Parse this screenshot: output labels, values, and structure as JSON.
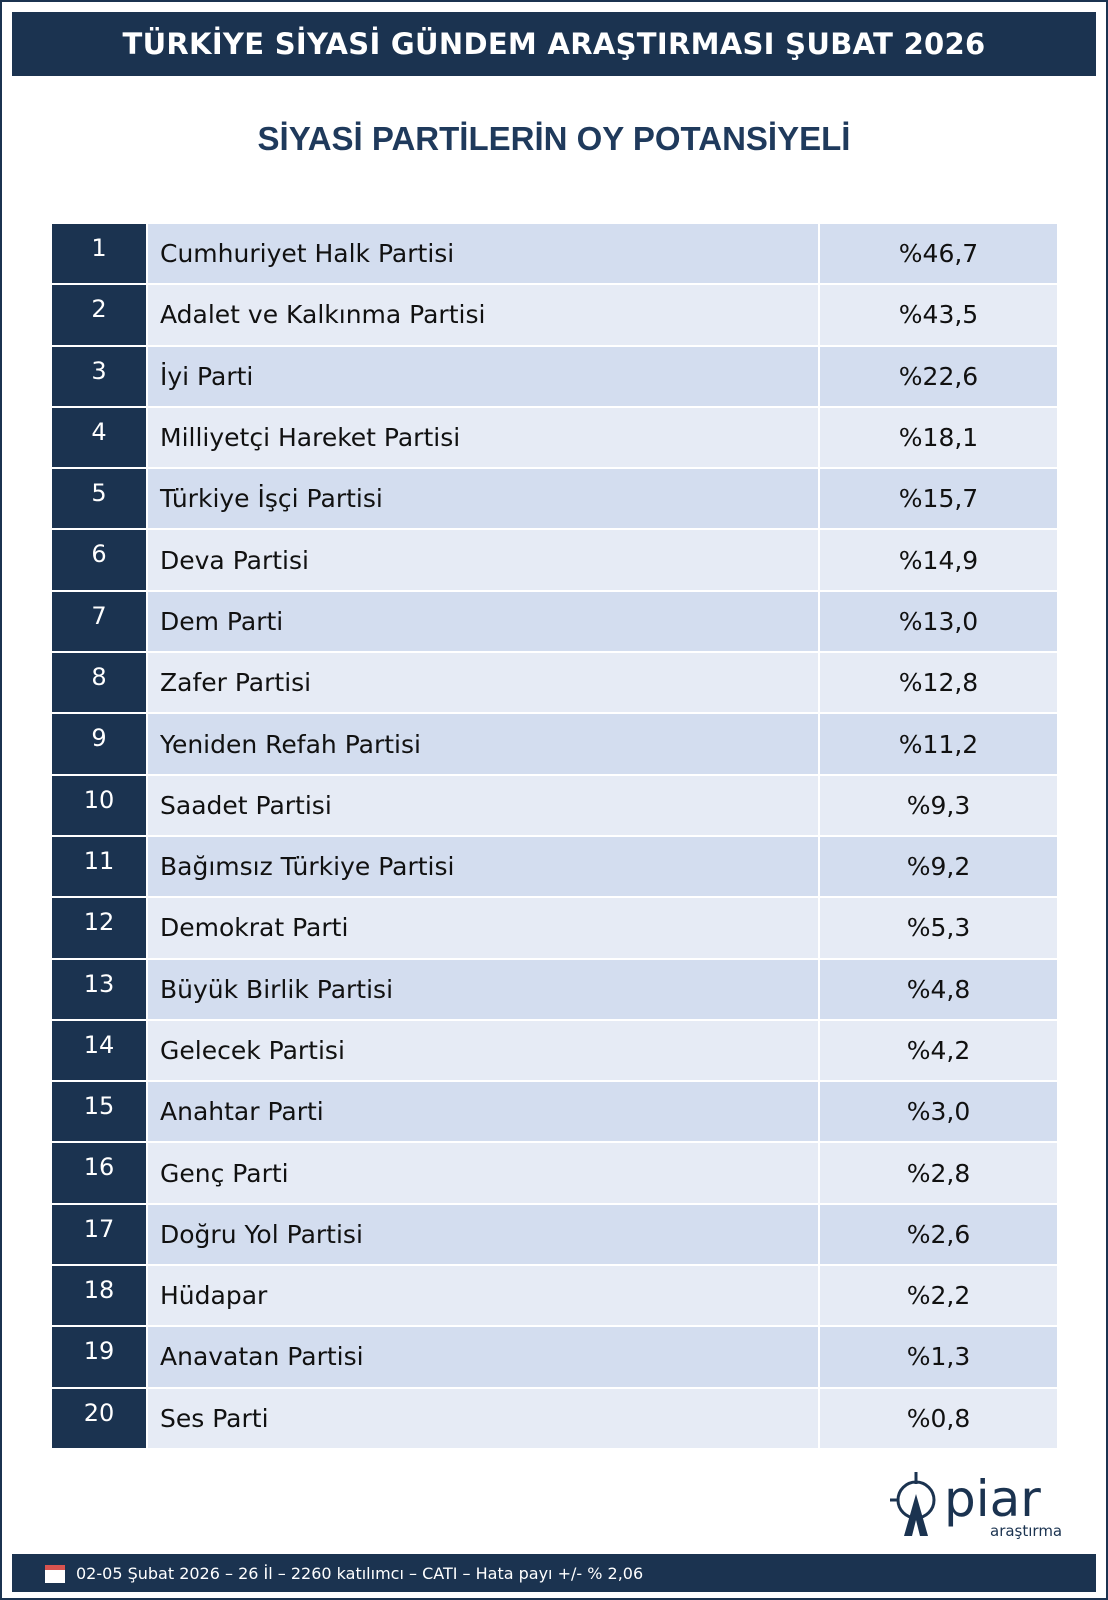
{
  "header": {
    "title": "TÜRKİYE SİYASİ GÜNDEM ARAŞTIRMASI ŞUBAT 2026"
  },
  "subtitle": "SİYASİ PARTİLERİN OY POTANSİYELİ",
  "table": {
    "rows": [
      [
        1,
        "Cumhuriyet Halk Partisi",
        "%46,7"
      ],
      [
        2,
        "Adalet ve Kalkınma Partisi",
        "%43,5"
      ],
      [
        3,
        "İyi Parti",
        "%22,6"
      ],
      [
        4,
        "Milliyetçi Hareket Partisi",
        "%18,1"
      ],
      [
        5,
        "Türkiye İşçi Partisi",
        "%15,7"
      ],
      [
        6,
        "Deva Partisi",
        "%14,9"
      ],
      [
        7,
        "Dem Parti",
        "%13,0"
      ],
      [
        8,
        "Zafer Partisi",
        "%12,8"
      ],
      [
        9,
        "Yeniden Refah Partisi",
        "%11,2"
      ],
      [
        10,
        "Saadet Partisi",
        "%9,3"
      ],
      [
        11,
        "Bağımsız Türkiye Partisi",
        "%9,2"
      ],
      [
        12,
        "Demokrat Parti",
        "%5,3"
      ],
      [
        13,
        "Büyük Birlik Partisi",
        "%4,8"
      ],
      [
        14,
        "Gelecek Partisi",
        "%4,2"
      ],
      [
        15,
        "Anahtar Parti",
        "%3,0"
      ],
      [
        16,
        "Genç Parti",
        "%2,8"
      ],
      [
        17,
        "Doğru Yol Partisi",
        "%2,6"
      ],
      [
        18,
        "Hüdapar",
        "%2,2"
      ],
      [
        19,
        "Anavatan Partisi",
        "%1,3"
      ],
      [
        20,
        "Ses Parti",
        "%0,8"
      ]
    ]
  },
  "logo": {
    "name": "piar",
    "tagline": "araştırma"
  },
  "footer": "02-05 Şubat 2026 – 26 İl – 2260 katılımcı – CATI – Hata payı +/- % 2,06"
}
